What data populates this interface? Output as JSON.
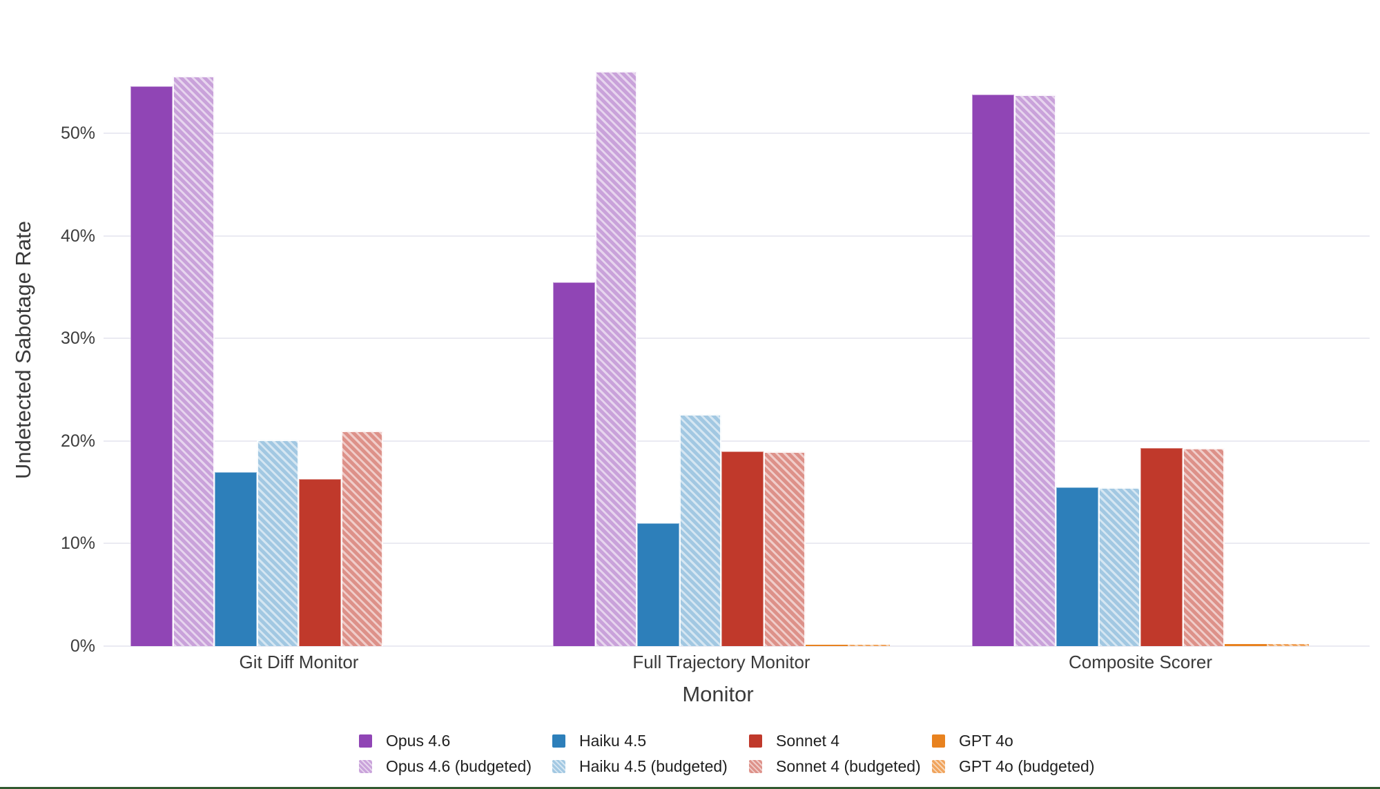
{
  "page": {
    "background_color": "#ffffff",
    "bottom_border_color": "#31592f"
  },
  "chart_data": {
    "type": "bar",
    "title": "",
    "xlabel": "Monitor",
    "ylabel": "Undetected Sabotage Rate",
    "categories": [
      "Git Diff Monitor",
      "Full Trajectory Monitor",
      "Composite Scorer"
    ],
    "series": [
      {
        "name": "Opus 4.6",
        "hatched": false,
        "color": "#9045b5",
        "values": [
          54.6,
          35.5,
          53.8
        ]
      },
      {
        "name": "Opus 4.6 (budgeted)",
        "hatched": true,
        "color": "#c9a2da",
        "values": [
          55.6,
          56.1,
          53.8
        ]
      },
      {
        "name": "Haiku 4.5",
        "hatched": false,
        "color": "#2d7fba",
        "values": [
          17.0,
          12.0,
          15.5
        ]
      },
      {
        "name": "Haiku 4.5 (budgeted)",
        "hatched": true,
        "color": "#a2c8e2",
        "values": [
          20.1,
          22.6,
          15.5
        ]
      },
      {
        "name": "Sonnet 4",
        "hatched": false,
        "color": "#c0392b",
        "values": [
          16.3,
          19.0,
          19.3
        ]
      },
      {
        "name": "Sonnet 4 (budgeted)",
        "hatched": true,
        "color": "#dd9189",
        "values": [
          21.0,
          19.0,
          19.3
        ]
      },
      {
        "name": "GPT 4o",
        "hatched": false,
        "color": "#e8821f",
        "values": [
          0.0,
          0.15,
          0.2
        ]
      },
      {
        "name": "GPT 4o (budgeted)",
        "hatched": true,
        "color": "#f0a35c",
        "values": [
          0.0,
          0.15,
          0.2
        ]
      }
    ],
    "y_ticks": [
      "0%",
      "10%",
      "20%",
      "30%",
      "40%",
      "50%"
    ],
    "y_tick_values": [
      0,
      10,
      20,
      30,
      40,
      50
    ],
    "ylim": [
      0,
      57.7
    ],
    "grid": true,
    "gridline_color": "#eaeaf2",
    "legend_position": "bottom",
    "legend_pairs_stacked": true
  }
}
